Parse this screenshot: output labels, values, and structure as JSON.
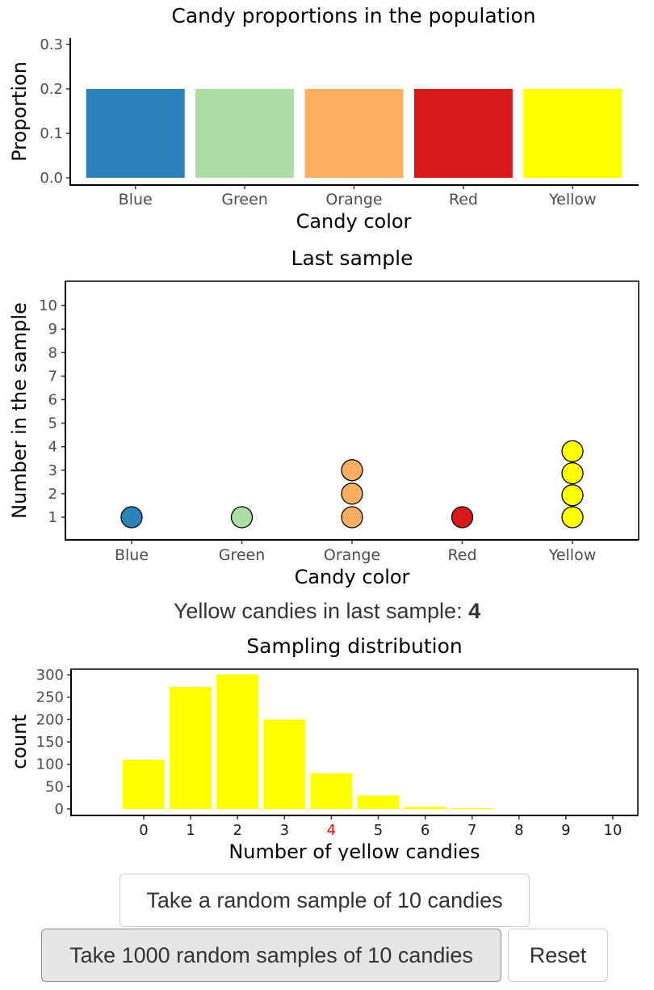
{
  "chart_data": [
    {
      "type": "bar",
      "title": "Candy proportions in the population",
      "xlabel": "Candy color",
      "ylabel": "Proportion",
      "categories": [
        "Blue",
        "Green",
        "Orange",
        "Red",
        "Yellow"
      ],
      "values": [
        0.2,
        0.2,
        0.2,
        0.2,
        0.2
      ],
      "colors": [
        "#2B83BA",
        "#ABDDA4",
        "#FDAE61",
        "#D7191C",
        "#FFFF00"
      ],
      "ylim": [
        0,
        0.3
      ],
      "yticks": [
        "0.0",
        "0.1",
        "0.2",
        "0.3"
      ]
    },
    {
      "type": "scatter",
      "title": "Last sample",
      "xlabel": "Candy color",
      "ylabel": "Number in the sample",
      "categories": [
        "Blue",
        "Green",
        "Orange",
        "Red",
        "Yellow"
      ],
      "counts": [
        1,
        1,
        3,
        1,
        4
      ],
      "colors": [
        "#2B83BA",
        "#ABDDA4",
        "#FDAE61",
        "#D7191C",
        "#FFFF00"
      ],
      "ylim": [
        0,
        10
      ],
      "yticks": [
        "1",
        "2",
        "3",
        "4",
        "5",
        "6",
        "7",
        "8",
        "9",
        "10"
      ]
    },
    {
      "type": "bar",
      "title": "Sampling distribution",
      "xlabel": "Number of yellow candies",
      "ylabel": "count",
      "categories": [
        "0",
        "1",
        "2",
        "3",
        "4",
        "5",
        "6",
        "7",
        "8",
        "9",
        "10"
      ],
      "values": [
        110,
        273,
        301,
        200,
        80,
        30,
        5,
        2,
        0,
        0,
        0
      ],
      "bar_color": "#FFFF00",
      "highlight_category": "4",
      "highlight_color": "#FF0000",
      "ylim": [
        0,
        300
      ],
      "yticks": [
        "0",
        "50",
        "100",
        "150",
        "200",
        "250",
        "300"
      ]
    }
  ],
  "stat": {
    "label": "Yellow candies in last sample:",
    "value": "4"
  },
  "buttons": {
    "single_sample": "Take a random sample of 10 candies",
    "many_samples": "Take 1000 random samples of 10 candies",
    "reset": "Reset"
  }
}
